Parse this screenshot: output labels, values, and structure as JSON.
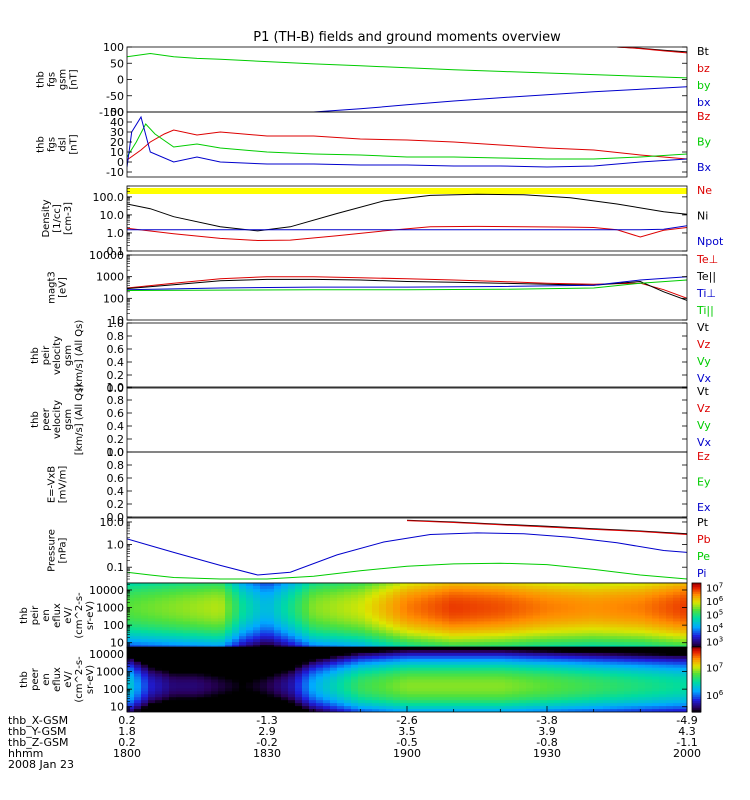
{
  "title": "P1 (TH-B) fields and ground moments overview",
  "x_axis": {
    "ticks": [
      {
        "X": "0.2",
        "Y": "1.8",
        "Z": "0.2",
        "hhmm": "1800"
      },
      {
        "X": "-1.3",
        "Y": "2.9",
        "Z": "-0.2",
        "hhmm": "1830"
      },
      {
        "X": "-2.6",
        "Y": "3.5",
        "Z": "-0.5",
        "hhmm": "1900"
      },
      {
        "X": "-3.8",
        "Y": "3.9",
        "Z": "-0.8",
        "hhmm": "1930"
      },
      {
        "X": "-4.9",
        "Y": "4.3",
        "Z": "-1.1",
        "hhmm": "2000"
      }
    ],
    "row_labels": [
      "thb_X-GSM",
      "thb_Y-GSM",
      "thb_Z-GSM",
      "hhmm",
      "2008 Jan 23"
    ],
    "time_range_minutes": [
      0,
      120
    ]
  },
  "colors": {
    "black": "#000000",
    "red": "#dd0000",
    "green": "#00cc00",
    "blue": "#0000cc",
    "yellow": "#ffff00"
  },
  "chart_data": [
    {
      "type": "line",
      "ylabel": [
        "thb",
        "fgs",
        "gsm",
        "[nT]"
      ],
      "yscale": "linear",
      "ylim": [
        -100,
        100
      ],
      "yticks": [
        "100",
        "50",
        "0",
        "-50",
        "-100"
      ],
      "series": [
        {
          "name": "Bt",
          "color": "black",
          "x": [
            105,
            110,
            115,
            120
          ],
          "y": [
            100,
            96,
            90,
            85
          ]
        },
        {
          "name": "bz",
          "color": "red",
          "x": [
            105,
            110,
            115,
            120
          ],
          "y": [
            100,
            95,
            88,
            82
          ]
        },
        {
          "name": "by",
          "color": "green",
          "x": [
            0,
            5,
            10,
            15,
            20,
            30,
            40,
            50,
            60,
            70,
            80,
            90,
            100,
            110,
            120
          ],
          "y": [
            70,
            80,
            70,
            65,
            62,
            55,
            48,
            42,
            36,
            30,
            25,
            20,
            15,
            10,
            5
          ]
        },
        {
          "name": "bx",
          "color": "blue",
          "x": [
            40,
            50,
            60,
            70,
            80,
            90,
            100,
            110,
            120
          ],
          "y": [
            -100,
            -90,
            -78,
            -66,
            -56,
            -47,
            -38,
            -30,
            -22
          ]
        }
      ]
    },
    {
      "type": "line",
      "ylabel": [
        "thb",
        "fgs",
        "dsl",
        "[nT]"
      ],
      "yscale": "linear",
      "ylim": [
        -15,
        50
      ],
      "yticks": [
        "50",
        "40",
        "30",
        "20",
        "10",
        "0",
        "-10"
      ],
      "series": [
        {
          "name": "Bz",
          "color": "red",
          "x": [
            0,
            3,
            5,
            8,
            10,
            15,
            20,
            30,
            40,
            50,
            60,
            70,
            80,
            90,
            100,
            110,
            120
          ],
          "y": [
            2,
            12,
            20,
            28,
            32,
            27,
            30,
            26,
            26,
            23,
            22,
            20,
            17,
            14,
            12,
            7,
            3
          ]
        },
        {
          "name": "By",
          "color": "green",
          "x": [
            0,
            2,
            4,
            6,
            10,
            15,
            20,
            30,
            40,
            50,
            60,
            70,
            80,
            90,
            100,
            110,
            120
          ],
          "y": [
            5,
            20,
            38,
            28,
            15,
            18,
            14,
            10,
            8,
            7,
            5,
            5,
            4,
            3,
            3,
            5,
            8
          ]
        },
        {
          "name": "Bx",
          "color": "blue",
          "x": [
            0,
            1,
            3,
            5,
            10,
            15,
            20,
            30,
            40,
            50,
            60,
            70,
            80,
            90,
            100,
            110,
            120
          ],
          "y": [
            -5,
            30,
            45,
            10,
            0,
            5,
            0,
            -2,
            -2,
            -3,
            -3,
            -4,
            -4,
            -5,
            -4,
            0,
            3
          ]
        }
      ]
    },
    {
      "type": "line",
      "ylabel": [
        "Density",
        "[1/cc]",
        "[cm-3]"
      ],
      "yscale": "log",
      "ylim": [
        0.1,
        400
      ],
      "yticks": [
        "100.0",
        "10.0",
        "1.0",
        "0.1"
      ],
      "band_color": "yellow",
      "series": [
        {
          "name": "Ne",
          "color": "red",
          "x": [
            0,
            10,
            20,
            28,
            35,
            45,
            55,
            65,
            75,
            85,
            95,
            100,
            105,
            110,
            115,
            120
          ],
          "y": [
            1.8,
            0.9,
            0.5,
            0.38,
            0.4,
            0.7,
            1.3,
            2.2,
            2.3,
            2.2,
            2.1,
            2.0,
            1.5,
            0.6,
            1.4,
            2.0
          ]
        },
        {
          "name": "Ni",
          "color": "black",
          "x": [
            0,
            5,
            10,
            20,
            28,
            35,
            45,
            55,
            65,
            75,
            85,
            95,
            105,
            115,
            120
          ],
          "y": [
            40,
            22,
            8,
            2.2,
            1.3,
            2.2,
            12,
            60,
            120,
            140,
            130,
            90,
            40,
            15,
            11
          ]
        },
        {
          "name": "Npot",
          "color": "blue",
          "x": [
            0,
            100,
            110,
            115,
            120
          ],
          "y": [
            1.5,
            1.5,
            1.5,
            1.6,
            2.5
          ]
        }
      ]
    },
    {
      "type": "line",
      "ylabel": [
        "magt3",
        "[eV]"
      ],
      "yscale": "log",
      "ylim": [
        10,
        10000
      ],
      "yticks": [
        "10000",
        "1000",
        "100",
        "10"
      ],
      "series": [
        {
          "name": "Te⊥",
          "color": "red",
          "x": [
            0,
            10,
            20,
            30,
            40,
            50,
            60,
            70,
            80,
            90,
            100,
            110,
            115,
            120
          ],
          "y": [
            300,
            500,
            800,
            1000,
            1000,
            900,
            800,
            700,
            600,
            500,
            450,
            500,
            250,
            100
          ]
        },
        {
          "name": "Te||",
          "color": "black",
          "x": [
            0,
            10,
            20,
            30,
            40,
            50,
            60,
            70,
            80,
            90,
            100,
            110,
            115,
            120
          ],
          "y": [
            280,
            420,
            650,
            750,
            750,
            700,
            600,
            550,
            500,
            450,
            400,
            600,
            200,
            80
          ]
        },
        {
          "name": "Ti⊥",
          "color": "blue",
          "x": [
            0,
            20,
            40,
            60,
            80,
            100,
            110,
            120
          ],
          "y": [
            250,
            300,
            330,
            330,
            350,
            400,
            700,
            1000
          ]
        },
        {
          "name": "Ti||",
          "color": "green",
          "x": [
            0,
            20,
            40,
            60,
            80,
            100,
            110,
            120
          ],
          "y": [
            230,
            240,
            250,
            250,
            260,
            300,
            500,
            700
          ]
        }
      ]
    },
    {
      "type": "line",
      "ylabel": [
        "thb",
        "peir",
        "velocity",
        "gsm",
        "[km/s] (All Qs)"
      ],
      "yscale": "linear",
      "ylim": [
        0,
        1
      ],
      "yticks": [
        "1.0",
        "0.8",
        "0.6",
        "0.4",
        "0.2",
        "0.0"
      ],
      "series": [
        {
          "name": "Vt",
          "color": "black",
          "x": [],
          "y": []
        },
        {
          "name": "Vz",
          "color": "red",
          "x": [],
          "y": []
        },
        {
          "name": "Vy",
          "color": "green",
          "x": [],
          "y": []
        },
        {
          "name": "Vx",
          "color": "blue",
          "x": [],
          "y": []
        }
      ]
    },
    {
      "type": "line",
      "ylabel": [
        "thb",
        "peer",
        "velocity",
        "gsm",
        "[km/s] (All Qs)"
      ],
      "yscale": "linear",
      "ylim": [
        0,
        1
      ],
      "yticks": [
        "1.0",
        "0.8",
        "0.6",
        "0.4",
        "0.2",
        "0.0"
      ],
      "series": [
        {
          "name": "Vt",
          "color": "black",
          "x": [],
          "y": []
        },
        {
          "name": "Vz",
          "color": "red",
          "x": [],
          "y": []
        },
        {
          "name": "Vy",
          "color": "green",
          "x": [],
          "y": []
        },
        {
          "name": "Vx",
          "color": "blue",
          "x": [],
          "y": []
        }
      ]
    },
    {
      "type": "line",
      "ylabel": [
        "E=-VxB",
        "[mV/m]"
      ],
      "yscale": "linear",
      "ylim": [
        0,
        1
      ],
      "yticks": [
        "1.0",
        "0.8",
        "0.6",
        "0.4",
        "0.2",
        "0.0"
      ],
      "series": [
        {
          "name": "Ez",
          "color": "red",
          "x": [],
          "y": []
        },
        {
          "name": "Ey",
          "color": "green",
          "x": [],
          "y": []
        },
        {
          "name": "Ex",
          "color": "blue",
          "x": [],
          "y": []
        }
      ]
    },
    {
      "type": "line",
      "ylabel": [
        "Pressure",
        "[nPa]"
      ],
      "yscale": "log",
      "ylim": [
        0.02,
        15
      ],
      "yticks": [
        "10.0",
        "1.0",
        "0.1"
      ],
      "series": [
        {
          "name": "Pt",
          "color": "black",
          "x": [
            60,
            70,
            80,
            90,
            100,
            110,
            120
          ],
          "y": [
            12,
            10,
            8,
            6.5,
            5,
            4,
            3
          ]
        },
        {
          "name": "Pb",
          "color": "red",
          "x": [
            60,
            70,
            80,
            90,
            100,
            110,
            120
          ],
          "y": [
            11.5,
            9.5,
            7.5,
            6,
            4.7,
            3.8,
            2.8
          ]
        },
        {
          "name": "Pe",
          "color": "green",
          "x": [
            0,
            5,
            10,
            20,
            30,
            40,
            50,
            60,
            70,
            80,
            90,
            100,
            110,
            120
          ],
          "y": [
            0.06,
            0.045,
            0.035,
            0.03,
            0.03,
            0.04,
            0.07,
            0.11,
            0.14,
            0.15,
            0.13,
            0.08,
            0.045,
            0.03
          ]
        },
        {
          "name": "Pi",
          "color": "blue",
          "x": [
            0,
            5,
            10,
            20,
            28,
            35,
            45,
            55,
            65,
            75,
            85,
            95,
            105,
            115,
            120
          ],
          "y": [
            1.8,
            0.9,
            0.45,
            0.12,
            0.045,
            0.06,
            0.35,
            1.3,
            2.8,
            3.3,
            3.0,
            2.1,
            1.2,
            0.55,
            0.45
          ]
        }
      ]
    },
    {
      "type": "heatmap",
      "ylabel": [
        "thb",
        "peir",
        "en",
        "eflux",
        "eV/",
        "(cm^2-s-",
        "sr-eV)"
      ],
      "yscale": "log",
      "ylim": [
        5,
        25000
      ],
      "yticks": [
        "10000",
        "1000",
        "100",
        "10"
      ],
      "colorbar_ticks": [
        "10^7",
        "10^6",
        "10^5",
        "10^4",
        "10^3"
      ],
      "colorbar_range_log10": [
        2.6,
        7.4
      ],
      "x_centers": [
        0,
        10,
        20,
        25,
        30,
        35,
        40,
        50,
        60,
        70,
        80,
        90,
        100,
        110,
        120
      ],
      "levels_log10": [
        5.4,
        5.6,
        5.8,
        4.8,
        4.3,
        4.9,
        5.6,
        5.9,
        6.6,
        6.9,
        6.8,
        6.6,
        6.5,
        6.6,
        6.9
      ],
      "peak_energy_eV": 1000
    },
    {
      "type": "heatmap",
      "ylabel": [
        "thb",
        "peer",
        "en",
        "eflux",
        "eV/",
        "(cm^2-s-",
        "sr-eV)"
      ],
      "yscale": "log",
      "ylim": [
        5,
        25000
      ],
      "yticks": [
        "10000",
        "1000",
        "100",
        "10"
      ],
      "colorbar_ticks": [
        "10^7",
        "10^6"
      ],
      "colorbar_range_log10": [
        5.4,
        7.8
      ],
      "x_centers": [
        0,
        5,
        10,
        15,
        20,
        25,
        30,
        35,
        40,
        50,
        60,
        70,
        80,
        90,
        100,
        110,
        120
      ],
      "levels_log10": [
        6.4,
        5.8,
        5.6,
        5.6,
        5.5,
        5.4,
        5.5,
        5.7,
        6.2,
        6.7,
        6.9,
        6.9,
        6.9,
        6.8,
        6.7,
        6.6,
        6.5
      ],
      "peak_energy_eV": 150
    }
  ]
}
